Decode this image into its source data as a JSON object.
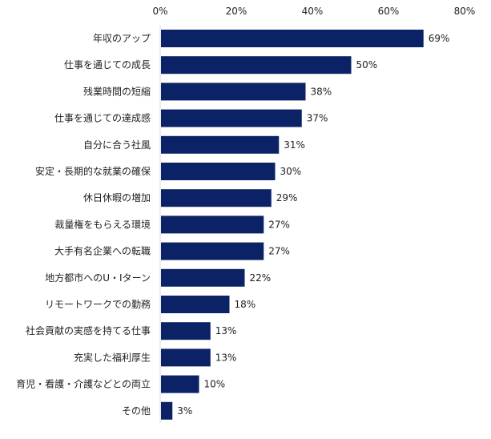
{
  "chart_data": {
    "type": "bar",
    "orientation": "horizontal",
    "title": "",
    "xlabel": "",
    "ylabel": "",
    "xlim": [
      0,
      80
    ],
    "ticks": [
      "0%",
      "20%",
      "40%",
      "60%",
      "80%"
    ],
    "tick_values": [
      0,
      20,
      40,
      60,
      80
    ],
    "bar_color": "#0c2266",
    "grid": false,
    "categories": [
      "年収のアップ",
      "仕事を通じての成長",
      "残業時間の短縮",
      "仕事を通じての達成感",
      "自分に合う社風",
      "安定・長期的な就業の確保",
      "休日休暇の増加",
      "裁量権をもらえる環境",
      "大手有名企業への転職",
      "地方都市へのU・Iターン",
      "リモートワークでの勤務",
      "社会貢献の実感を持てる仕事",
      "充実した福利厚生",
      "育児・看護・介護などとの両立",
      "その他"
    ],
    "values": [
      69,
      50,
      38,
      37,
      31,
      30,
      29,
      27,
      27,
      22,
      18,
      13,
      13,
      10,
      3
    ],
    "value_labels": [
      "69%",
      "50%",
      "38%",
      "37%",
      "31%",
      "30%",
      "29%",
      "27%",
      "27%",
      "22%",
      "18%",
      "13%",
      "13%",
      "10%",
      "3%"
    ]
  }
}
